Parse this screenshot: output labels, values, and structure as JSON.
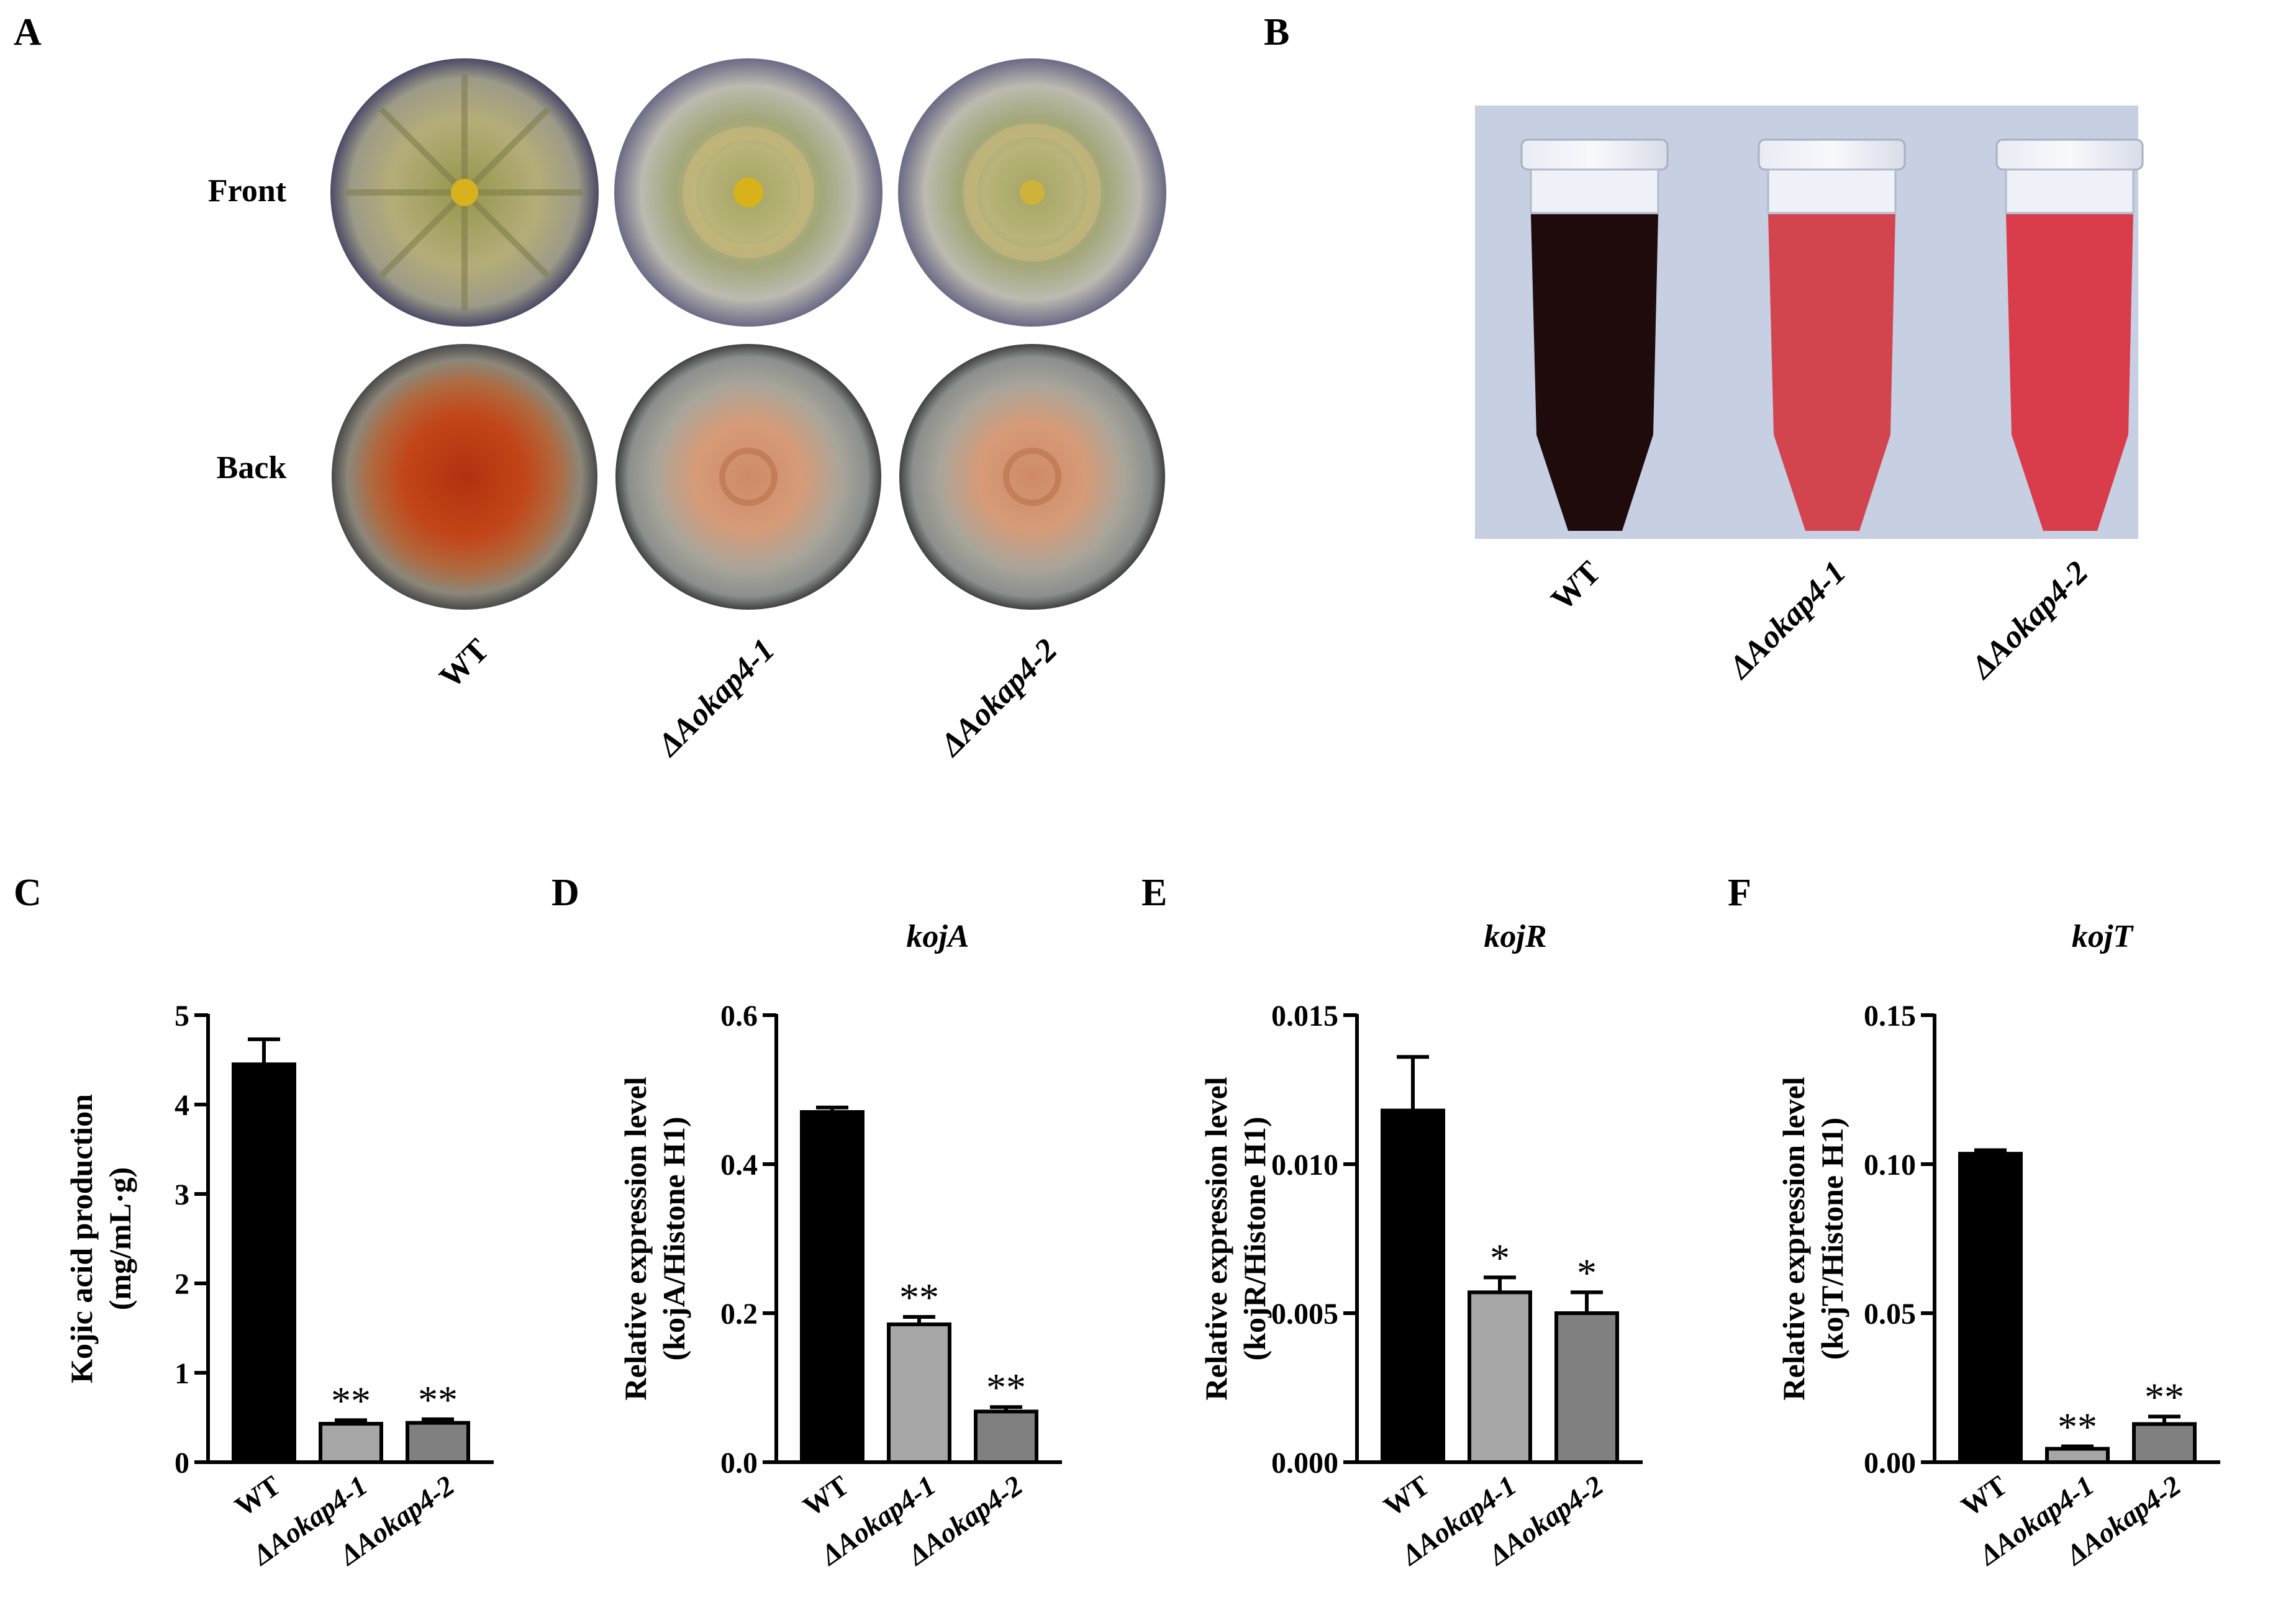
{
  "panel_letters": {
    "A": "A",
    "B": "B",
    "C": "C",
    "D": "D",
    "E": "E",
    "F": "F"
  },
  "panel_a": {
    "row_labels": [
      "Front",
      "Back"
    ],
    "strains": [
      "WT",
      "ΔAokap4-1",
      "ΔAokap4-2"
    ]
  },
  "panel_b": {
    "strains": [
      "WT",
      "ΔAokap4-1",
      "ΔAokap4-2"
    ]
  },
  "colors": {
    "wt_bar": "#000000",
    "mut1_bar": "#a6a6a6",
    "mut2_bar": "#808080",
    "tube_wt_liquid": "#1f0a0c",
    "tube_mut_liquid": "#d2454f",
    "photo_background": "#c7cfe3"
  },
  "chart_data": [
    {
      "type": "bar",
      "panel": "C",
      "title": "",
      "ylabel": [
        "Kojic acid production",
        "(mg/mL·g)"
      ],
      "categories": [
        "WT",
        "ΔAokap4-1",
        "ΔAokap4-2"
      ],
      "values": [
        4.45,
        0.43,
        0.44
      ],
      "errors": [
        0.28,
        0.04,
        0.04
      ],
      "significance": [
        "",
        "**",
        "**"
      ],
      "ylim": [
        0,
        5
      ],
      "yticks": [
        "0",
        "1",
        "2",
        "3",
        "4",
        "5"
      ]
    },
    {
      "type": "bar",
      "panel": "D",
      "title": "kojA",
      "ylabel": [
        "Relative expression level",
        "(kojA/Histone H1)"
      ],
      "categories": [
        "WT",
        "ΔAokap4-1",
        "ΔAokap4-2"
      ],
      "values": [
        0.47,
        0.185,
        0.068
      ],
      "errors": [
        0.006,
        0.01,
        0.006
      ],
      "significance": [
        "",
        "**",
        "**"
      ],
      "ylim": [
        0,
        0.6
      ],
      "yticks": [
        "0.0",
        "0.2",
        "0.4",
        "0.6"
      ]
    },
    {
      "type": "bar",
      "panel": "E",
      "title": "kojR",
      "ylabel": [
        "Relative expression level",
        "(kojR/Histone H1)"
      ],
      "categories": [
        "WT",
        "ΔAokap4-1",
        "ΔAokap4-2"
      ],
      "values": [
        0.0118,
        0.0057,
        0.005
      ],
      "errors": [
        0.0018,
        0.0005,
        0.0007
      ],
      "significance": [
        "",
        "*",
        "*"
      ],
      "ylim": [
        0,
        0.015
      ],
      "yticks": [
        "0.000",
        "0.005",
        "0.010",
        "0.015"
      ]
    },
    {
      "type": "bar",
      "panel": "F",
      "title": "kojT",
      "ylabel": [
        "Relative expression level",
        "(kojT/Histone H1)"
      ],
      "categories": [
        "WT",
        "ΔAokap4-1",
        "ΔAokap4-2"
      ],
      "values": [
        0.1035,
        0.0045,
        0.0128
      ],
      "errors": [
        0.0012,
        0.0008,
        0.0025
      ],
      "significance": [
        "",
        "**",
        "**"
      ],
      "ylim": [
        0,
        0.15
      ],
      "yticks": [
        "0.00",
        "0.05",
        "0.10",
        "0.15"
      ]
    }
  ]
}
